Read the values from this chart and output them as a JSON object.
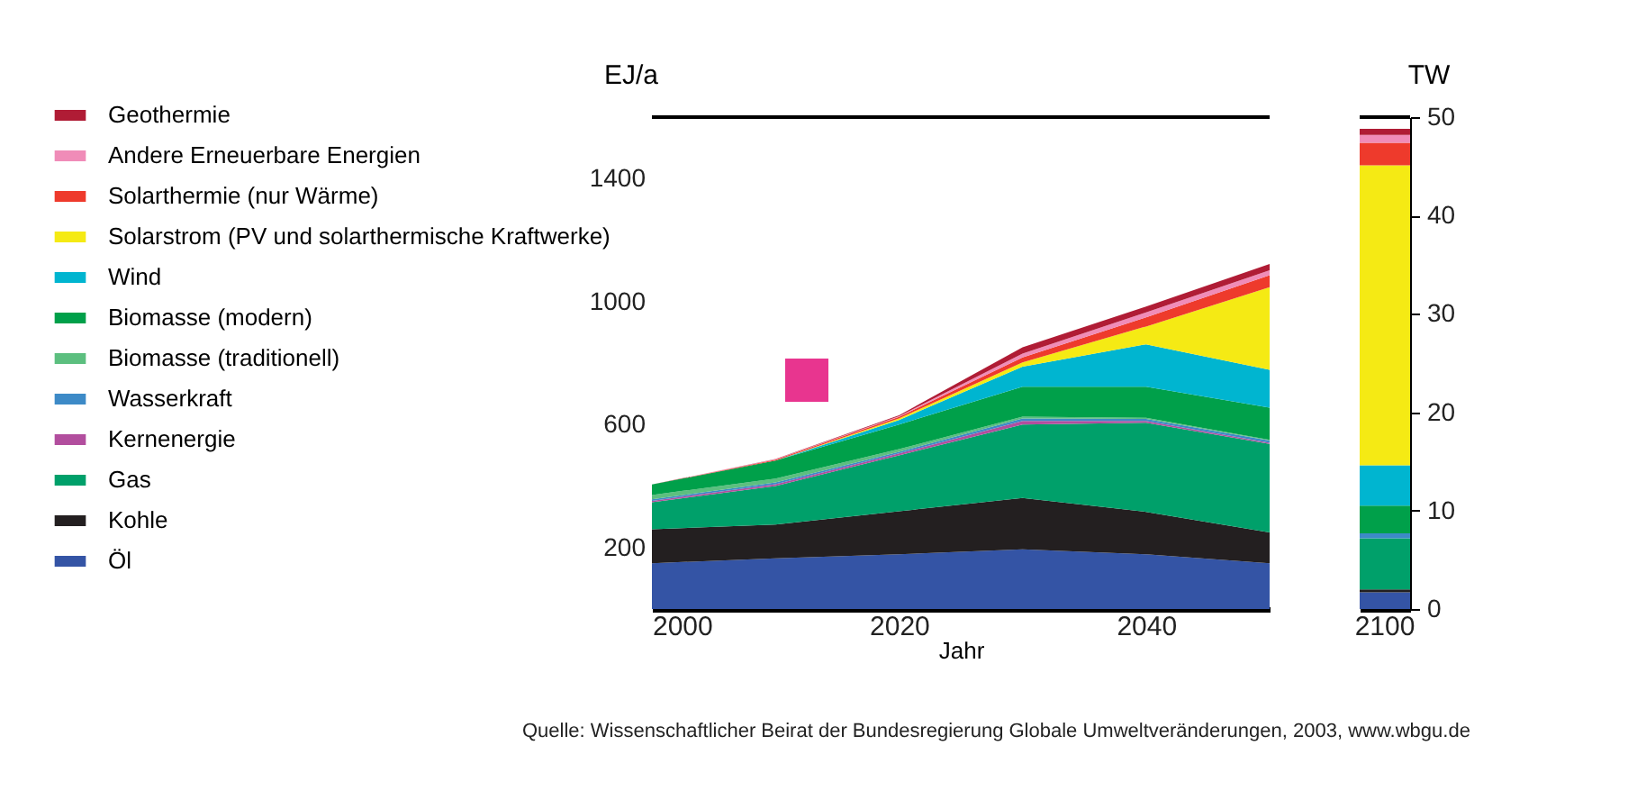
{
  "chart_data": [
    {
      "type": "area",
      "stacked": true,
      "xlabel": "Jahr",
      "ylabel": "EJ/a",
      "legend": "left",
      "x": [
        2000,
        2010,
        2020,
        2030,
        2040,
        2050
      ],
      "xlim": [
        2000,
        2050
      ],
      "xticks": [
        2000,
        2020,
        2040
      ],
      "ylim": [
        0,
        1600
      ],
      "yticks": [
        200,
        600,
        1000,
        1400
      ],
      "grid": false,
      "series": [
        {
          "name": "Öl",
          "color": "#3454a5",
          "values": [
            149,
            165,
            178,
            194,
            178,
            149
          ]
        },
        {
          "name": "Kohle",
          "color": "#231f20",
          "values": [
            110,
            110,
            140,
            167,
            138,
            100
          ]
        },
        {
          "name": "Gas",
          "color": "#00a06a",
          "values": [
            88,
            125,
            182,
            239,
            290,
            288
          ]
        },
        {
          "name": "Kernenergie",
          "color": "#b24e9e",
          "values": [
            5,
            6,
            6,
            12,
            6,
            4
          ]
        },
        {
          "name": "Wasserkraft",
          "color": "#3d8ac7",
          "values": [
            5,
            6,
            5,
            8,
            6,
            7
          ]
        },
        {
          "name": "Biomasse (traditionell)",
          "color": "#5cbf7f",
          "values": [
            14,
            12,
            9,
            6,
            4,
            2
          ]
        },
        {
          "name": "Biomasse (modern)",
          "color": "#00a04a",
          "values": [
            34,
            59,
            80,
            97,
            101,
            105
          ]
        },
        {
          "name": "Wind",
          "color": "#00b5d0",
          "values": [
            0,
            0,
            15,
            65,
            138,
            123
          ]
        },
        {
          "name": "Solarstrom (PV und solarthermische Kraftwerke)",
          "color": "#f5ea14",
          "values": [
            0,
            0,
            5,
            14,
            58,
            269
          ]
        },
        {
          "name": "Solarthermie (nur Wärme)",
          "color": "#ee3a2c",
          "values": [
            0,
            3,
            5,
            16,
            30,
            39
          ]
        },
        {
          "name": "Andere Erneuerbare Energien",
          "color": "#f08cb8",
          "values": [
            0,
            1,
            2,
            13,
            16,
            16
          ]
        },
        {
          "name": "Geothermie",
          "color": "#b01c35",
          "values": [
            0,
            1,
            3,
            20,
            19,
            20
          ]
        }
      ],
      "ref_lines": [
        {
          "axis": "y",
          "value": 1600,
          "color": "#000000"
        }
      ],
      "annotations": [
        "Quelle: Wissenschaftlicher Beirat der Bundesregierung Globale Umweltveränderungen, 2003, www.wbgu.de"
      ]
    },
    {
      "type": "bar",
      "stacked": true,
      "ylabel": "TW",
      "legend": false,
      "categories": [
        "2100"
      ],
      "ylim": [
        0,
        50
      ],
      "yticks": [
        0,
        10,
        20,
        30,
        40,
        50
      ],
      "grid": false,
      "series": [
        {
          "color": "#3454a5",
          "values": [
            1.7
          ]
        },
        {
          "color": "#231f20",
          "values": [
            0.3
          ]
        },
        {
          "color": "#00a06a",
          "values": [
            5.2
          ]
        },
        {
          "color": "#b24e9e",
          "values": [
            0
          ]
        },
        {
          "color": "#3d8ac7",
          "values": [
            0.5
          ]
        },
        {
          "color": "#5cbf7f",
          "values": [
            0
          ]
        },
        {
          "color": "#00a04a",
          "values": [
            2.8
          ]
        },
        {
          "color": "#00b5d0",
          "values": [
            4.1
          ]
        },
        {
          "color": "#f5ea14",
          "values": [
            30.5
          ]
        },
        {
          "color": "#ee3a2c",
          "values": [
            2.3
          ]
        },
        {
          "color": "#f08cb8",
          "values": [
            0.8
          ]
        },
        {
          "color": "#b01c35",
          "values": [
            0.6
          ]
        }
      ],
      "ref_lines": [
        {
          "axis": "y",
          "value": 50,
          "color": "#000000"
        }
      ]
    }
  ]
}
